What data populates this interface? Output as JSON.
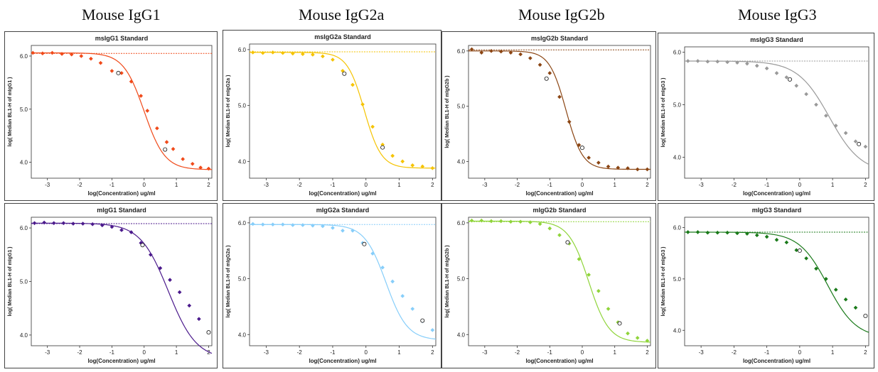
{
  "column_titles": [
    "Mouse IgG1",
    "Mouse IgG2a",
    "Mouse IgG2b",
    "Mouse IgG3"
  ],
  "chart_data": [
    {
      "type": "scatter",
      "title": "msIgG1 Standard",
      "xlabel": "log(Concentration) ug/ml",
      "ylabel": "log( Median BL1-H of mIgG1 )",
      "xlim": [
        -3.5,
        2.1
      ],
      "ylim": [
        3.7,
        6.2
      ],
      "xticks": [
        -3,
        -2,
        -1,
        0,
        1,
        2
      ],
      "yticks": [
        4.0,
        5.0,
        6.0
      ],
      "color": "#f04a1a",
      "ref_line": 6.05,
      "fit": {
        "top": 6.06,
        "bottom": 3.86,
        "ec50": 0.0,
        "slope": 1.35
      },
      "points": [
        [
          -3.45,
          6.06
        ],
        [
          -3.15,
          6.05
        ],
        [
          -2.85,
          6.06
        ],
        [
          -2.55,
          6.04
        ],
        [
          -2.25,
          6.03
        ],
        [
          -1.95,
          6.0
        ],
        [
          -1.65,
          5.95
        ],
        [
          -1.35,
          5.87
        ],
        [
          -1.0,
          5.72
        ],
        [
          -0.7,
          5.68
        ],
        [
          -0.4,
          5.52
        ],
        [
          -0.1,
          5.25
        ],
        [
          0.1,
          4.97
        ],
        [
          0.4,
          4.64
        ],
        [
          0.7,
          4.38
        ],
        [
          0.9,
          4.25
        ],
        [
          1.2,
          4.06
        ],
        [
          1.5,
          3.97
        ],
        [
          1.75,
          3.9
        ],
        [
          2.0,
          3.88
        ]
      ],
      "markers": [
        [
          -0.8,
          5.68
        ],
        [
          0.65,
          4.24
        ]
      ]
    },
    {
      "type": "scatter",
      "title": "msIgG2a Standard",
      "xlabel": "log(Concentration) ug/ml",
      "ylabel": "log( Median BL1-H of mIgG2a )",
      "xlim": [
        -3.5,
        2.1
      ],
      "ylim": [
        3.7,
        6.1
      ],
      "xticks": [
        -3,
        -2,
        -1,
        0,
        1,
        2
      ],
      "yticks": [
        4.0,
        5.0,
        6.0
      ],
      "color": "#f5c300",
      "ref_line": 5.96,
      "fit": {
        "top": 5.95,
        "bottom": 3.88,
        "ec50": -0.05,
        "slope": 1.7
      },
      "points": [
        [
          -3.4,
          5.95
        ],
        [
          -3.1,
          5.94
        ],
        [
          -2.8,
          5.95
        ],
        [
          -2.5,
          5.94
        ],
        [
          -2.2,
          5.93
        ],
        [
          -1.9,
          5.92
        ],
        [
          -1.6,
          5.91
        ],
        [
          -1.3,
          5.88
        ],
        [
          -1.0,
          5.82
        ],
        [
          -0.7,
          5.62
        ],
        [
          -0.4,
          5.37
        ],
        [
          -0.1,
          5.02
        ],
        [
          0.2,
          4.62
        ],
        [
          0.5,
          4.3
        ],
        [
          0.8,
          4.1
        ],
        [
          1.1,
          4.0
        ],
        [
          1.4,
          3.93
        ],
        [
          1.7,
          3.91
        ],
        [
          2.0,
          3.88
        ]
      ],
      "markers": [
        [
          -0.65,
          5.57
        ],
        [
          0.5,
          4.25
        ]
      ]
    },
    {
      "type": "scatter",
      "title": "msIgG2b Standard",
      "xlabel": "log(Concentration) ug/ml",
      "ylabel": "log( Median BL1-H of mIgG2b )",
      "xlim": [
        -3.5,
        2.1
      ],
      "ylim": [
        3.7,
        6.1
      ],
      "xticks": [
        -3,
        -2,
        -1,
        0,
        1,
        2
      ],
      "yticks": [
        4.0,
        5.0,
        6.0
      ],
      "color": "#8b4513",
      "ref_line": 6.02,
      "fit": {
        "top": 6.0,
        "bottom": 3.86,
        "ec50": -0.5,
        "slope": 1.7
      },
      "points": [
        [
          -3.4,
          6.03
        ],
        [
          -3.1,
          5.97
        ],
        [
          -2.8,
          6.0
        ],
        [
          -2.5,
          5.99
        ],
        [
          -2.2,
          5.97
        ],
        [
          -1.9,
          5.94
        ],
        [
          -1.6,
          5.87
        ],
        [
          -1.3,
          5.75
        ],
        [
          -1.0,
          5.6
        ],
        [
          -0.7,
          5.17
        ],
        [
          -0.4,
          4.72
        ],
        [
          -0.1,
          4.3
        ],
        [
          0.2,
          4.07
        ],
        [
          0.5,
          3.98
        ],
        [
          0.8,
          3.91
        ],
        [
          1.1,
          3.89
        ],
        [
          1.4,
          3.88
        ],
        [
          1.7,
          3.86
        ],
        [
          2.0,
          3.86
        ]
      ],
      "markers": [
        [
          -1.1,
          5.5
        ],
        [
          0.0,
          4.25
        ]
      ]
    },
    {
      "type": "scatter",
      "title": "msIgG3 Standard",
      "xlabel": "log(Concentration) ug/ml",
      "ylabel": "log( Median BL1-H of mIgG3 )",
      "xlim": [
        -3.5,
        2.1
      ],
      "ylim": [
        3.6,
        6.1
      ],
      "xticks": [
        -3,
        -2,
        -1,
        0,
        1,
        2
      ],
      "yticks": [
        4.0,
        5.0,
        6.0
      ],
      "color": "#999999",
      "ref_line": 5.83,
      "fit": {
        "top": 5.83,
        "bottom": 3.7,
        "ec50": 0.9,
        "slope": 0.9
      },
      "points": [
        [
          -3.4,
          5.83
        ],
        [
          -3.1,
          5.83
        ],
        [
          -2.8,
          5.82
        ],
        [
          -2.5,
          5.82
        ],
        [
          -2.2,
          5.81
        ],
        [
          -1.9,
          5.8
        ],
        [
          -1.6,
          5.78
        ],
        [
          -1.3,
          5.74
        ],
        [
          -1.0,
          5.69
        ],
        [
          -0.7,
          5.6
        ],
        [
          -0.4,
          5.52
        ],
        [
          -0.1,
          5.36
        ],
        [
          0.2,
          5.2
        ],
        [
          0.5,
          5.0
        ],
        [
          0.8,
          4.79
        ],
        [
          1.1,
          4.6
        ],
        [
          1.4,
          4.46
        ],
        [
          1.7,
          4.3
        ],
        [
          2.0,
          4.2
        ]
      ],
      "markers": [
        [
          -0.3,
          5.48
        ],
        [
          1.8,
          4.25
        ]
      ]
    },
    {
      "type": "scatter",
      "title": "mIgG1 Standard",
      "xlabel": "log(Concentration) ug/ml",
      "ylabel": "log( Median BL1-H of mIgG1 )",
      "xlim": [
        -3.5,
        2.1
      ],
      "ylim": [
        3.8,
        6.2
      ],
      "xticks": [
        -3,
        -2,
        -1,
        0,
        1,
        2
      ],
      "yticks": [
        4.0,
        5.0,
        6.0
      ],
      "color": "#4b1a8c",
      "ref_line": 6.08,
      "fit": {
        "top": 6.09,
        "bottom": 3.55,
        "ec50": 0.75,
        "slope": 1.0
      },
      "points": [
        [
          -3.4,
          6.09
        ],
        [
          -3.1,
          6.1
        ],
        [
          -2.8,
          6.09
        ],
        [
          -2.5,
          6.09
        ],
        [
          -2.2,
          6.08
        ],
        [
          -1.9,
          6.08
        ],
        [
          -1.6,
          6.07
        ],
        [
          -1.3,
          6.05
        ],
        [
          -1.0,
          6.02
        ],
        [
          -0.7,
          5.96
        ],
        [
          -0.4,
          5.92
        ],
        [
          -0.1,
          5.72
        ],
        [
          0.2,
          5.5
        ],
        [
          0.5,
          5.25
        ],
        [
          0.8,
          5.03
        ],
        [
          1.1,
          4.8
        ],
        [
          1.4,
          4.55
        ],
        [
          1.7,
          4.3
        ],
        [
          2.0,
          4.05
        ]
      ],
      "markers": [
        [
          -0.05,
          5.68
        ],
        [
          2.0,
          4.05
        ]
      ]
    },
    {
      "type": "scatter",
      "title": "mIgG2a Standard",
      "xlabel": "log(Concentration) ug/ml",
      "ylabel": "log( Median BL1-H of mIgG2a )",
      "xlim": [
        -3.5,
        2.1
      ],
      "ylim": [
        3.8,
        6.1
      ],
      "xticks": [
        -3,
        -2,
        -1,
        0,
        1,
        2
      ],
      "yticks": [
        4.0,
        5.0,
        6.0
      ],
      "color": "#87cefa",
      "ref_line": 5.97,
      "fit": {
        "top": 5.97,
        "bottom": 3.9,
        "ec50": 0.6,
        "slope": 1.35
      },
      "points": [
        [
          -3.4,
          5.98
        ],
        [
          -3.1,
          5.97
        ],
        [
          -2.8,
          5.97
        ],
        [
          -2.5,
          5.97
        ],
        [
          -2.2,
          5.96
        ],
        [
          -1.9,
          5.96
        ],
        [
          -1.6,
          5.95
        ],
        [
          -1.3,
          5.94
        ],
        [
          -1.0,
          5.91
        ],
        [
          -0.7,
          5.86
        ],
        [
          -0.4,
          5.86
        ],
        [
          -0.1,
          5.64
        ],
        [
          0.2,
          5.45
        ],
        [
          0.5,
          5.2
        ],
        [
          0.8,
          4.95
        ],
        [
          1.1,
          4.69
        ],
        [
          1.4,
          4.46
        ],
        [
          1.7,
          4.24
        ],
        [
          2.0,
          4.08
        ]
      ],
      "markers": [
        [
          -0.05,
          5.62
        ],
        [
          1.7,
          4.25
        ]
      ]
    },
    {
      "type": "scatter",
      "title": "mIgG2b Standard",
      "xlabel": "log(Concentration) ug/ml",
      "ylabel": "log( Median BL1-H of mIgG2b )",
      "xlim": [
        -3.5,
        2.1
      ],
      "ylim": [
        3.8,
        6.1
      ],
      "xticks": [
        -3,
        -2,
        -1,
        0,
        1,
        2
      ],
      "yticks": [
        4.0,
        5.0,
        6.0
      ],
      "color": "#8fd43a",
      "ref_line": 6.02,
      "fit": {
        "top": 6.03,
        "bottom": 3.86,
        "ec50": 0.2,
        "slope": 1.4
      },
      "points": [
        [
          -3.4,
          6.04
        ],
        [
          -3.1,
          6.04
        ],
        [
          -2.8,
          6.03
        ],
        [
          -2.5,
          6.03
        ],
        [
          -2.2,
          6.02
        ],
        [
          -1.9,
          6.02
        ],
        [
          -1.6,
          6.01
        ],
        [
          -1.3,
          5.98
        ],
        [
          -1.0,
          5.9
        ],
        [
          -0.7,
          5.78
        ],
        [
          -0.4,
          5.63
        ],
        [
          -0.1,
          5.35
        ],
        [
          0.2,
          5.07
        ],
        [
          0.5,
          4.78
        ],
        [
          0.8,
          4.46
        ],
        [
          1.1,
          4.22
        ],
        [
          1.4,
          4.02
        ],
        [
          1.7,
          3.94
        ],
        [
          2.0,
          3.89
        ]
      ],
      "markers": [
        [
          -0.45,
          5.65
        ],
        [
          1.15,
          4.2
        ]
      ]
    },
    {
      "type": "scatter",
      "title": "mIgG3 Standard",
      "xlabel": "log(Concentration) ug/ml",
      "ylabel": "log( Median BL1-H of mIgG3 )",
      "xlim": [
        -3.5,
        2.1
      ],
      "ylim": [
        3.7,
        6.2
      ],
      "xticks": [
        -3,
        -2,
        -1,
        0,
        1,
        2
      ],
      "yticks": [
        4.0,
        5.0,
        6.0
      ],
      "color": "#1a7a1a",
      "ref_line": 5.91,
      "fit": {
        "top": 5.91,
        "bottom": 3.85,
        "ec50": 0.85,
        "slope": 1.0
      },
      "points": [
        [
          -3.4,
          5.91
        ],
        [
          -3.1,
          5.91
        ],
        [
          -2.8,
          5.9
        ],
        [
          -2.5,
          5.9
        ],
        [
          -2.2,
          5.9
        ],
        [
          -1.9,
          5.89
        ],
        [
          -1.6,
          5.88
        ],
        [
          -1.3,
          5.85
        ],
        [
          -1.0,
          5.82
        ],
        [
          -0.7,
          5.76
        ],
        [
          -0.4,
          5.71
        ],
        [
          -0.1,
          5.56
        ],
        [
          0.2,
          5.4
        ],
        [
          0.5,
          5.2
        ],
        [
          0.8,
          5.0
        ],
        [
          1.1,
          4.79
        ],
        [
          1.4,
          4.6
        ],
        [
          1.7,
          4.44
        ],
        [
          2.0,
          4.28
        ]
      ],
      "markers": [
        [
          0.0,
          5.55
        ],
        [
          2.0,
          4.28
        ]
      ]
    }
  ]
}
